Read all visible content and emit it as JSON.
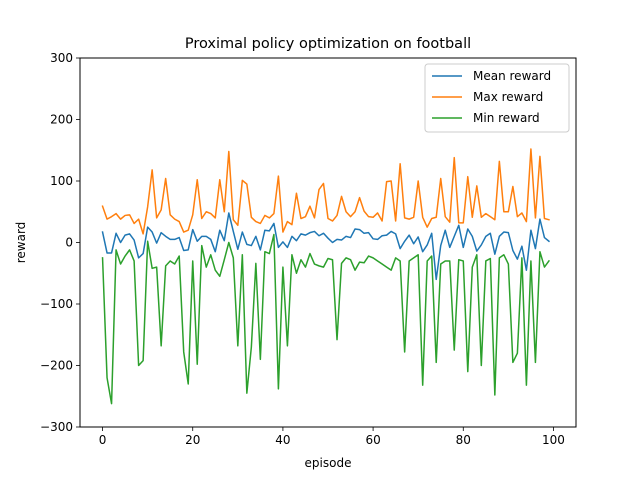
{
  "chart_data": {
    "type": "line",
    "title": "Proximal policy optimization on football",
    "xlabel": "episode",
    "ylabel": "reward",
    "xlim": [
      -5,
      105
    ],
    "ylim": [
      -300,
      300
    ],
    "xticks": [
      0,
      20,
      40,
      60,
      80,
      100
    ],
    "yticks": [
      -300,
      -200,
      -100,
      0,
      100,
      200,
      300
    ],
    "xtick_labels": [
      "0",
      "20",
      "40",
      "60",
      "80",
      "100"
    ],
    "ytick_labels": [
      "−300",
      "−200",
      "−100",
      "0",
      "100",
      "200",
      "300"
    ],
    "grid": false,
    "legend_position": "top-right",
    "x": [
      0,
      1,
      2,
      3,
      4,
      5,
      6,
      7,
      8,
      9,
      10,
      11,
      12,
      13,
      14,
      15,
      16,
      17,
      18,
      19,
      20,
      21,
      22,
      23,
      24,
      25,
      26,
      27,
      28,
      29,
      30,
      31,
      32,
      33,
      34,
      35,
      36,
      37,
      38,
      39,
      40,
      41,
      42,
      43,
      44,
      45,
      46,
      47,
      48,
      49,
      50,
      51,
      52,
      53,
      54,
      55,
      56,
      57,
      58,
      59,
      60,
      61,
      62,
      63,
      64,
      65,
      66,
      67,
      68,
      69,
      70,
      71,
      72,
      73,
      74,
      75,
      76,
      77,
      78,
      79,
      80,
      81,
      82,
      83,
      84,
      85,
      86,
      87,
      88,
      89,
      90,
      91,
      92,
      93,
      94,
      95,
      96,
      97,
      98,
      99
    ],
    "series": [
      {
        "name": "Mean reward",
        "color": "#1f77b4",
        "values": [
          17,
          -17,
          -17,
          15,
          0,
          12,
          14,
          4,
          -25,
          -18,
          25,
          17,
          -1,
          16,
          10,
          5,
          5,
          8,
          -13,
          -12,
          21,
          2,
          10,
          10,
          5,
          -15,
          20,
          3,
          48,
          18,
          -11,
          17,
          -3,
          -5,
          10,
          -12,
          20,
          19,
          31,
          -8,
          1,
          -8,
          10,
          3,
          14,
          12,
          16,
          18,
          11,
          15,
          7,
          0,
          5,
          4,
          10,
          8,
          22,
          21,
          15,
          16,
          6,
          5,
          11,
          12,
          18,
          14,
          -10,
          2,
          12,
          -2,
          9,
          -15,
          -4,
          15,
          -60,
          -5,
          20,
          -8,
          10,
          28,
          -8,
          22,
          10,
          -14,
          -4,
          10,
          15,
          -19,
          10,
          17,
          16,
          -13,
          -27,
          -6,
          -45,
          20,
          -10,
          38,
          8,
          2
        ]
      },
      {
        "name": "Max reward",
        "color": "#ff7f0e",
        "values": [
          59,
          38,
          42,
          47,
          38,
          44,
          45,
          31,
          38,
          14,
          58,
          118,
          40,
          53,
          104,
          45,
          38,
          34,
          17,
          20,
          45,
          102,
          39,
          50,
          47,
          40,
          102,
          50,
          148,
          37,
          28,
          101,
          95,
          41,
          34,
          31,
          44,
          40,
          47,
          108,
          17,
          34,
          29,
          80,
          39,
          42,
          59,
          40,
          86,
          96,
          39,
          35,
          44,
          75,
          50,
          42,
          50,
          73,
          51,
          42,
          41,
          48,
          35,
          99,
          100,
          35,
          128,
          40,
          38,
          41,
          100,
          41,
          25,
          39,
          41,
          104,
          42,
          33,
          138,
          32,
          32,
          107,
          41,
          92,
          41,
          47,
          42,
          37,
          132,
          50,
          50,
          91,
          42,
          48,
          34,
          152,
          40,
          140,
          39,
          37
        ]
      },
      {
        "name": "Min reward",
        "color": "#2ca02c",
        "values": [
          -25,
          -220,
          -262,
          -12,
          -35,
          -22,
          -12,
          -30,
          -200,
          -192,
          2,
          -42,
          -40,
          -168,
          -38,
          -30,
          -35,
          -22,
          -178,
          -230,
          -30,
          -198,
          -5,
          -40,
          -20,
          -45,
          -55,
          -28,
          0,
          -25,
          -168,
          -20,
          -245,
          -170,
          -34,
          -190,
          -15,
          -18,
          13,
          -238,
          -40,
          -168,
          -20,
          -50,
          -28,
          -40,
          -18,
          -35,
          -38,
          -40,
          -26,
          -28,
          -158,
          -34,
          -25,
          -28,
          -45,
          -32,
          -33,
          -22,
          -25,
          -30,
          -35,
          -40,
          -45,
          -25,
          -30,
          -178,
          -30,
          -25,
          -20,
          -232,
          -30,
          -22,
          -195,
          -35,
          -30,
          -30,
          -175,
          -28,
          -30,
          -210,
          -40,
          -20,
          -200,
          -30,
          -26,
          -248,
          -25,
          -20,
          -35,
          -195,
          -180,
          -25,
          -232,
          -30,
          -195,
          -15,
          -40,
          -30
        ]
      }
    ]
  }
}
